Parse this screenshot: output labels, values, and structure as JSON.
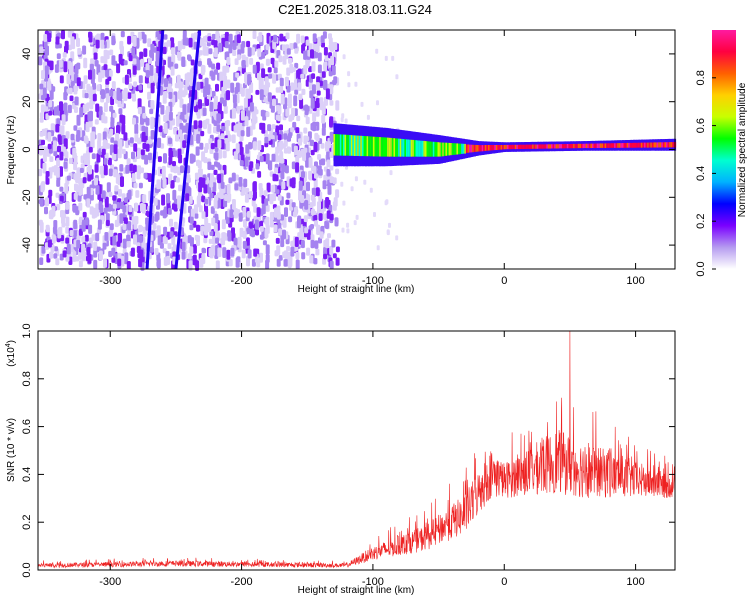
{
  "title": "C2E1.2025.318.03.11.G24",
  "chart_data": [
    {
      "type": "heatmap",
      "xlabel": "Height of straight line (km)",
      "ylabel": "Frequency (Hz)",
      "xlim": [
        -355,
        130
      ],
      "ylim": [
        -50,
        50
      ],
      "xticks": [
        -300,
        -200,
        -100,
        0,
        100
      ],
      "xtick_labels": [
        "-300",
        "-200",
        "-100",
        "0",
        "100"
      ],
      "yticks": [
        -40,
        -20,
        0,
        20,
        40
      ],
      "ytick_labels": [
        "-40",
        "-20",
        "0",
        "20",
        "40"
      ],
      "noise_region_x": [
        -355,
        -125
      ],
      "signal_band": [
        {
          "x": -130,
          "freq_center": 2,
          "freq_halfwidth": 9
        },
        {
          "x": -90,
          "freq_center": 1,
          "freq_halfwidth": 8
        },
        {
          "x": -50,
          "freq_center": 0,
          "freq_halfwidth": 6
        },
        {
          "x": -20,
          "freq_center": 0.5,
          "freq_halfwidth": 3
        },
        {
          "x": 0,
          "freq_center": 1,
          "freq_halfwidth": 2
        },
        {
          "x": 60,
          "freq_center": 1.5,
          "freq_halfwidth": 2
        },
        {
          "x": 130,
          "freq_center": 2,
          "freq_halfwidth": 2.5
        }
      ],
      "streaks": [
        {
          "x1": -272,
          "y1": -50,
          "x2": -260,
          "y2": 50
        },
        {
          "x1": -250,
          "y1": -50,
          "x2": -232,
          "y2": 50
        }
      ],
      "colorbar": {
        "label": "Normalized spectral amplitude",
        "range": [
          0,
          1
        ],
        "ticks": [
          0.0,
          0.2,
          0.4,
          0.6,
          0.8
        ],
        "tick_labels": [
          "0.0",
          "0.2",
          "0.4",
          "0.6",
          "0.8"
        ],
        "colors": [
          "#ffffff",
          "#b59bf0",
          "#7a00ff",
          "#0000ff",
          "#00b2ff",
          "#00ffd0",
          "#00ff00",
          "#c8ff00",
          "#ffd000",
          "#ff6000",
          "#ff0040",
          "#ff1aa0"
        ]
      }
    },
    {
      "type": "line",
      "xlabel": "Height of straight line (km)",
      "ylabel": "SNR (10 * v/v)",
      "exponent_label": "(x10",
      "exponent_power": "4",
      "exponent_close": ")",
      "xlim": [
        -355,
        130
      ],
      "ylim": [
        0,
        1.0
      ],
      "xticks": [
        -300,
        -200,
        -100,
        0,
        100
      ],
      "xtick_labels": [
        "-300",
        "-200",
        "-100",
        "0",
        "100"
      ],
      "yticks": [
        0.0,
        0.2,
        0.4,
        0.6,
        0.8,
        1.0
      ],
      "ytick_labels": [
        "0.0",
        "0.2",
        "0.4",
        "0.6",
        "0.8",
        "1.0"
      ],
      "line_color": "#ee2222",
      "envelope": [
        {
          "x": -355,
          "base": 0.01,
          "amp": 0.03
        },
        {
          "x": -250,
          "base": 0.015,
          "amp": 0.04
        },
        {
          "x": -120,
          "base": 0.01,
          "amp": 0.03
        },
        {
          "x": -100,
          "base": 0.04,
          "amp": 0.1
        },
        {
          "x": -60,
          "base": 0.08,
          "amp": 0.18
        },
        {
          "x": -30,
          "base": 0.15,
          "amp": 0.28
        },
        {
          "x": -10,
          "base": 0.3,
          "amp": 0.35
        },
        {
          "x": 0,
          "base": 0.3,
          "amp": 0.25
        },
        {
          "x": 40,
          "base": 0.32,
          "amp": 0.45
        },
        {
          "x": 60,
          "base": 0.3,
          "amp": 0.4
        },
        {
          "x": 90,
          "base": 0.3,
          "amp": 0.3
        },
        {
          "x": 130,
          "base": 0.3,
          "amp": 0.15
        }
      ],
      "peak": {
        "x": 50,
        "y": 1.0
      }
    }
  ]
}
